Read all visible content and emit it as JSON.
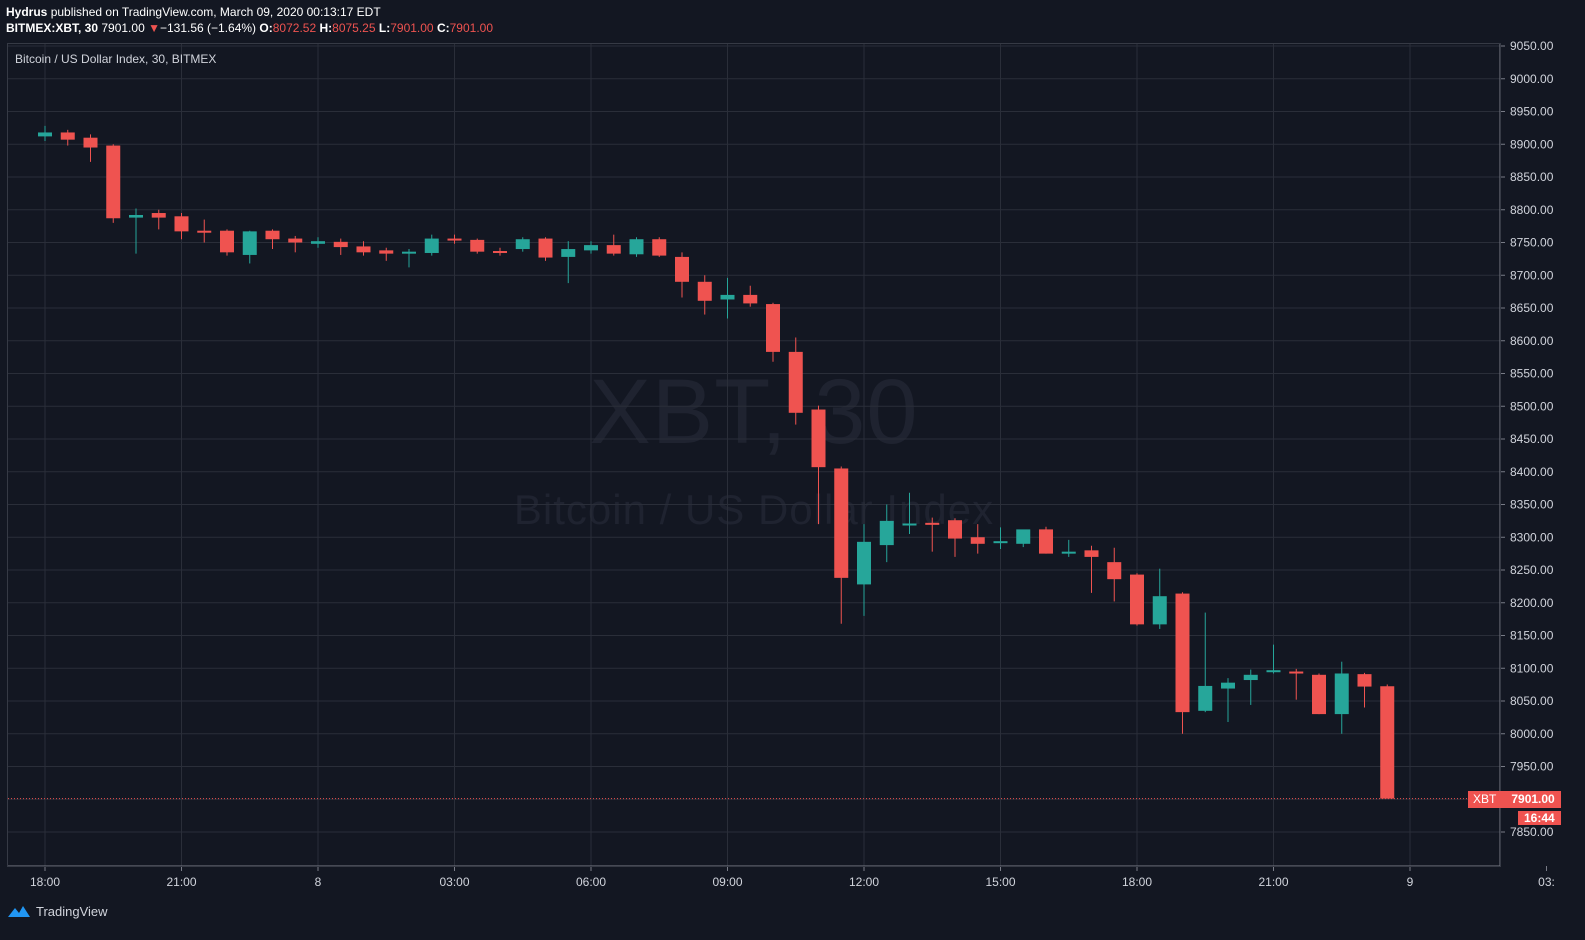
{
  "header": {
    "author": "Hydrus",
    "published_text": "published on TradingView.com, March 09, 2020 00:13:17 EDT",
    "symbol": "BITMEX:XBT, 30",
    "last": "7901.00",
    "change_arrow": "▼",
    "change": "−131.56 (−1.64%)",
    "o_label": "O:",
    "o_value": "8072.52",
    "h_label": "H:",
    "h_value": "8075.25",
    "l_label": "L:",
    "l_value": "7901.00",
    "c_label": "C:",
    "c_value": "7901.00"
  },
  "legend_title": "Bitcoin / US Dollar Index, 30, BITMEX",
  "watermark": {
    "line1": "XBT, 30",
    "line2": "Bitcoin / US Dollar Index"
  },
  "price_tag": {
    "symbol": "XBT",
    "price": "7901.00",
    "countdown": "16:44"
  },
  "footer": {
    "brand": "TradingView"
  },
  "colors": {
    "background": "#131722",
    "up": "#26a69a",
    "down": "#ef5350",
    "grid": "#2a2e39",
    "text": "#d1d4dc"
  },
  "chart_data": {
    "type": "candlestick",
    "interval": "30",
    "ylim": [
      7825,
      9050
    ],
    "y_ticks": [
      7850,
      7900,
      7950,
      8000,
      8050,
      8100,
      8150,
      8200,
      8250,
      8300,
      8350,
      8400,
      8450,
      8500,
      8550,
      8600,
      8650,
      8700,
      8750,
      8800,
      8850,
      8900,
      8950,
      9000,
      9050
    ],
    "y_tick_labels": [
      "7850.00",
      "7900.00",
      "7950.00",
      "8000.00",
      "8050.00",
      "8100.00",
      "8150.00",
      "8200.00",
      "8250.00",
      "8300.00",
      "8350.00",
      "8400.00",
      "8450.00",
      "8500.00",
      "8550.00",
      "8600.00",
      "8650.00",
      "8700.00",
      "8750.00",
      "8800.00",
      "8850.00",
      "8900.00",
      "8950.00",
      "9000.00",
      "9050.00"
    ],
    "x_ticks": [
      {
        "index": 0,
        "label": "18:00"
      },
      {
        "index": 6,
        "label": "21:00"
      },
      {
        "index": 12,
        "label": "8"
      },
      {
        "index": 18,
        "label": "03:00"
      },
      {
        "index": 24,
        "label": "06:00"
      },
      {
        "index": 30,
        "label": "09:00"
      },
      {
        "index": 36,
        "label": "12:00"
      },
      {
        "index": 42,
        "label": "15:00"
      },
      {
        "index": 48,
        "label": "18:00"
      },
      {
        "index": 54,
        "label": "21:00"
      },
      {
        "index": 60,
        "label": "9"
      },
      {
        "index": 66,
        "label": "03:"
      }
    ],
    "current_price": 7901.0,
    "candles": [
      {
        "o": 8912,
        "h": 8928,
        "l": 8905,
        "c": 8918
      },
      {
        "o": 8918,
        "h": 8922,
        "l": 8898,
        "c": 8907
      },
      {
        "o": 8910,
        "h": 8915,
        "l": 8873,
        "c": 8895
      },
      {
        "o": 8898,
        "h": 8900,
        "l": 8780,
        "c": 8787
      },
      {
        "o": 8788,
        "h": 8802,
        "l": 8733,
        "c": 8792
      },
      {
        "o": 8795,
        "h": 8800,
        "l": 8770,
        "c": 8788
      },
      {
        "o": 8790,
        "h": 8795,
        "l": 8755,
        "c": 8767
      },
      {
        "o": 8768,
        "h": 8785,
        "l": 8750,
        "c": 8766
      },
      {
        "o": 8768,
        "h": 8770,
        "l": 8730,
        "c": 8735
      },
      {
        "o": 8731,
        "h": 8768,
        "l": 8718,
        "c": 8767
      },
      {
        "o": 8768,
        "h": 8770,
        "l": 8740,
        "c": 8755
      },
      {
        "o": 8756,
        "h": 8760,
        "l": 8735,
        "c": 8750
      },
      {
        "o": 8748,
        "h": 8758,
        "l": 8742,
        "c": 8752
      },
      {
        "o": 8751,
        "h": 8756,
        "l": 8731,
        "c": 8743
      },
      {
        "o": 8744,
        "h": 8752,
        "l": 8730,
        "c": 8735
      },
      {
        "o": 8738,
        "h": 8742,
        "l": 8722,
        "c": 8733
      },
      {
        "o": 8734,
        "h": 8740,
        "l": 8712,
        "c": 8736
      },
      {
        "o": 8734,
        "h": 8762,
        "l": 8730,
        "c": 8756
      },
      {
        "o": 8756,
        "h": 8762,
        "l": 8748,
        "c": 8753
      },
      {
        "o": 8754,
        "h": 8756,
        "l": 8733,
        "c": 8736
      },
      {
        "o": 8737,
        "h": 8742,
        "l": 8730,
        "c": 8735
      },
      {
        "o": 8740,
        "h": 8758,
        "l": 8736,
        "c": 8755
      },
      {
        "o": 8756,
        "h": 8758,
        "l": 8722,
        "c": 8727
      },
      {
        "o": 8728,
        "h": 8752,
        "l": 8688,
        "c": 8740
      },
      {
        "o": 8738,
        "h": 8752,
        "l": 8733,
        "c": 8746
      },
      {
        "o": 8746,
        "h": 8762,
        "l": 8730,
        "c": 8733
      },
      {
        "o": 8732,
        "h": 8758,
        "l": 8728,
        "c": 8755
      },
      {
        "o": 8755,
        "h": 8758,
        "l": 8728,
        "c": 8730
      },
      {
        "o": 8728,
        "h": 8735,
        "l": 8666,
        "c": 8690
      },
      {
        "o": 8690,
        "h": 8700,
        "l": 8640,
        "c": 8661
      },
      {
        "o": 8663,
        "h": 8696,
        "l": 8634,
        "c": 8670
      },
      {
        "o": 8670,
        "h": 8684,
        "l": 8652,
        "c": 8657
      },
      {
        "o": 8656,
        "h": 8658,
        "l": 8568,
        "c": 8583
      },
      {
        "o": 8583,
        "h": 8605,
        "l": 8472,
        "c": 8490
      },
      {
        "o": 8495,
        "h": 8501,
        "l": 8320,
        "c": 8407
      },
      {
        "o": 8405,
        "h": 8408,
        "l": 8168,
        "c": 8238
      },
      {
        "o": 8228,
        "h": 8320,
        "l": 8180,
        "c": 8293
      },
      {
        "o": 8288,
        "h": 8350,
        "l": 8262,
        "c": 8325
      },
      {
        "o": 8318,
        "h": 8368,
        "l": 8305,
        "c": 8321
      },
      {
        "o": 8322,
        "h": 8330,
        "l": 8278,
        "c": 8319
      },
      {
        "o": 8326,
        "h": 8329,
        "l": 8270,
        "c": 8298
      },
      {
        "o": 8300,
        "h": 8320,
        "l": 8275,
        "c": 8290
      },
      {
        "o": 8292,
        "h": 8315,
        "l": 8282,
        "c": 8294
      },
      {
        "o": 8290,
        "h": 8308,
        "l": 8285,
        "c": 8312
      },
      {
        "o": 8312,
        "h": 8316,
        "l": 8275,
        "c": 8275
      },
      {
        "o": 8276,
        "h": 8296,
        "l": 8270,
        "c": 8278
      },
      {
        "o": 8280,
        "h": 8287,
        "l": 8215,
        "c": 8270
      },
      {
        "o": 8262,
        "h": 8284,
        "l": 8202,
        "c": 8236
      },
      {
        "o": 8243,
        "h": 8245,
        "l": 8165,
        "c": 8167
      },
      {
        "o": 8167,
        "h": 8252,
        "l": 8160,
        "c": 8210
      },
      {
        "o": 8214,
        "h": 8216,
        "l": 8000,
        "c": 8033
      },
      {
        "o": 8035,
        "h": 8185,
        "l": 8033,
        "c": 8073
      },
      {
        "o": 8069,
        "h": 8085,
        "l": 8018,
        "c": 8078
      },
      {
        "o": 8082,
        "h": 8098,
        "l": 8044,
        "c": 8090
      },
      {
        "o": 8094,
        "h": 8136,
        "l": 8092,
        "c": 8097
      },
      {
        "o": 8095,
        "h": 8099,
        "l": 8052,
        "c": 8092
      },
      {
        "o": 8090,
        "h": 8092,
        "l": 8030,
        "c": 8030
      },
      {
        "o": 8030,
        "h": 8110,
        "l": 8000,
        "c": 8092
      },
      {
        "o": 8091,
        "h": 8093,
        "l": 8040,
        "c": 8072
      },
      {
        "o": 8072.52,
        "h": 8075.25,
        "l": 7901,
        "c": 7901
      }
    ]
  }
}
